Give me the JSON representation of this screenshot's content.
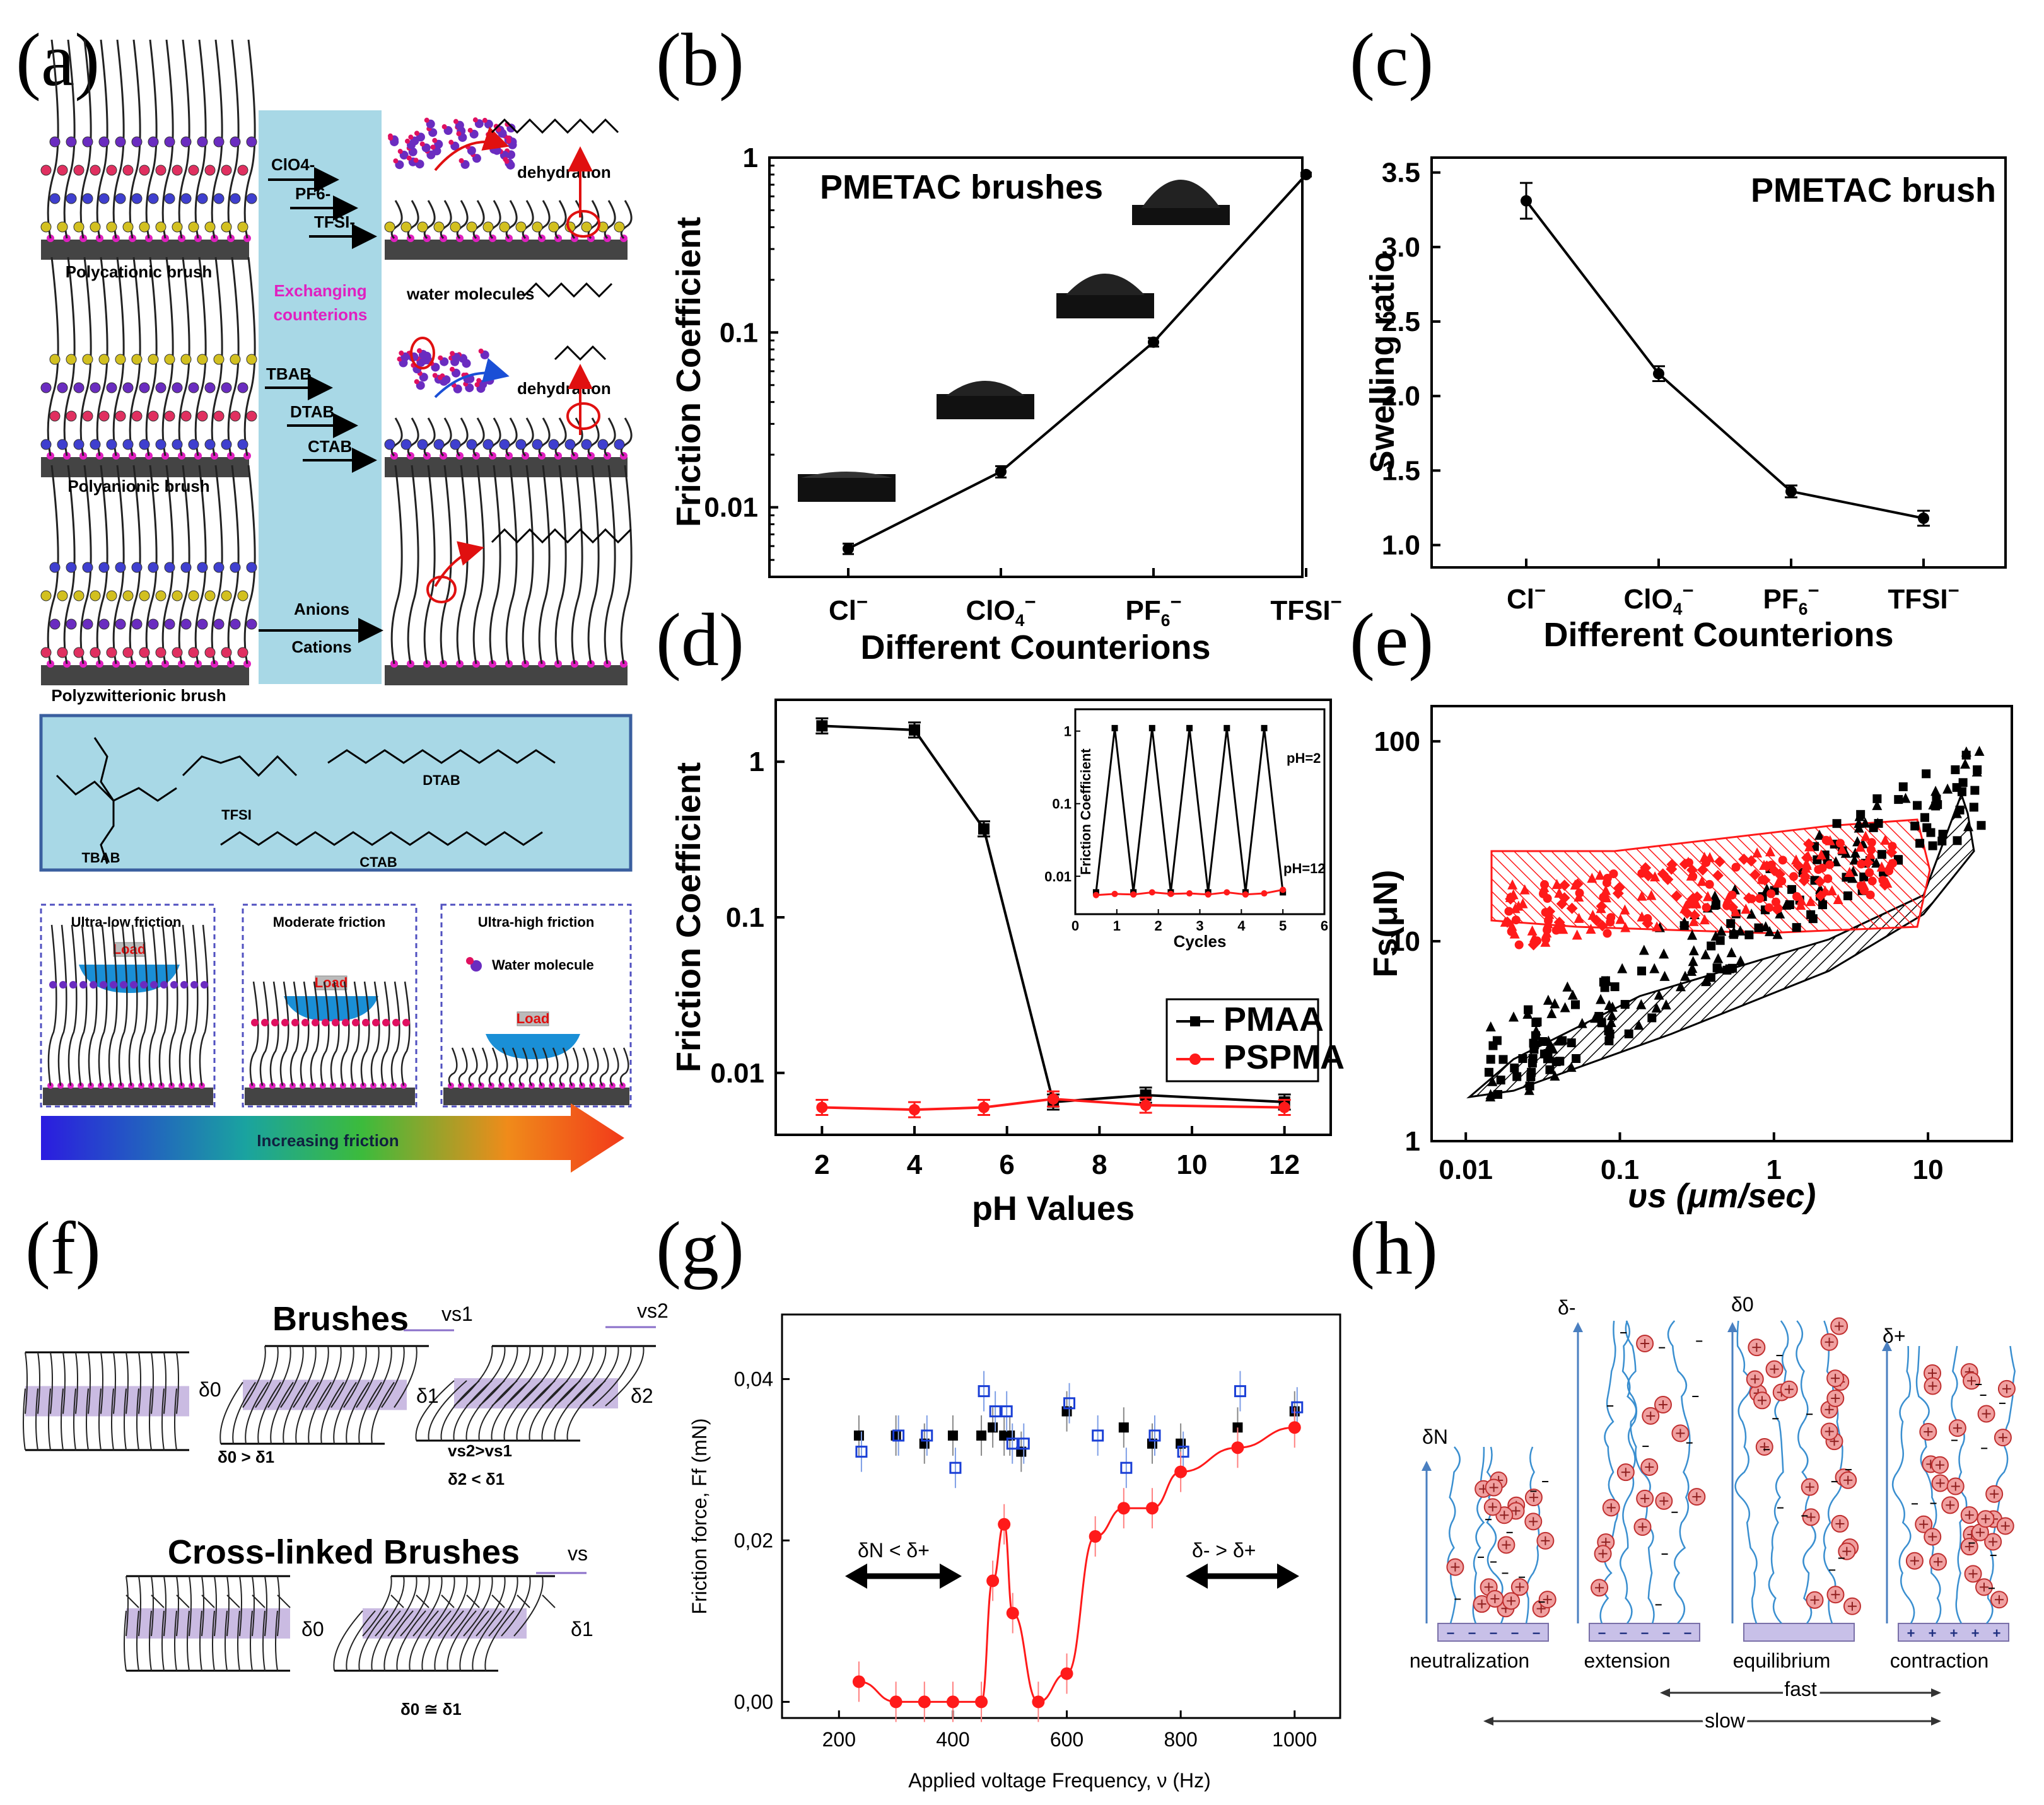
{
  "panel_labels": [
    "(a)",
    "(b)",
    "(c)",
    "(d)",
    "(e)",
    "(f)",
    "(g)",
    "(h)"
  ],
  "panel_a": {
    "brush_names": [
      "Polycationic brush",
      "Polyanionic brush",
      "Polyzwitterionic brush"
    ],
    "exchanging": [
      "Exchanging",
      "counterions"
    ],
    "counterions_top": [
      "ClO4-",
      "PF6-",
      "TFSI-"
    ],
    "counterions_mid": [
      "TBAB",
      "DTAB",
      "CTAB"
    ],
    "zwitter_arrows": [
      "Anions",
      "Cations"
    ],
    "dehydration": "dehydration",
    "water_molecules": "water molecules",
    "chem_labels": [
      "TBAB",
      "TFSI",
      "DTAB",
      "CTAB"
    ],
    "friction_boxes": [
      "Ultra-low friction",
      "Moderate friction",
      "Ultra-high friction"
    ],
    "load": "Load",
    "water_molecule": "Water molecule",
    "increasing_friction": "Increasing friction"
  },
  "panel_f": {
    "title_brushes": "Brushes",
    "title_crosslinked": "Cross-linked Brushes",
    "rel1": "δ0 > δ1",
    "rel2a": "vs2>vs1",
    "rel2b": "δ2 < δ1",
    "rel3": "δ0 ≅ δ1",
    "d0": "δ0",
    "d1": "δ1",
    "d2": "δ2",
    "vs1": "vs1",
    "vs2": "vs2",
    "vs": "vs"
  },
  "panel_h": {
    "states": [
      "neutralization",
      "extension",
      "equilibrium",
      "contraction"
    ],
    "fast": "fast",
    "slow": "slow",
    "deltas": [
      "δN",
      "δ-",
      "δ0",
      "δ+"
    ]
  },
  "chart_data": [
    {
      "id": "b",
      "type": "line",
      "title": "PMETAC brushes",
      "xlabel": "Different Counterions",
      "ylabel": "Friction Coefficient",
      "categories": [
        "Cl-",
        "ClO4-",
        "PF6-",
        "TFSI-"
      ],
      "yscale": "log",
      "ylim": [
        0.004,
        1
      ],
      "yticks": [
        "0.01",
        "0.1",
        "1"
      ],
      "series": [
        {
          "name": "PMETAC",
          "values": [
            0.0058,
            0.016,
            0.088,
            0.8
          ],
          "errors": [
            0.0004,
            0.0012,
            0.005,
            0.02
          ]
        }
      ]
    },
    {
      "id": "c",
      "type": "line",
      "title": "PMETAC brush",
      "xlabel": "Different Counterions",
      "ylabel": "Swelling ratio",
      "categories": [
        "Cl-",
        "ClO4-",
        "PF6-",
        "TFSI-"
      ],
      "ylim": [
        0.85,
        3.6
      ],
      "yticks": [
        "1.0",
        "1.5",
        "2.0",
        "2.5",
        "3.0",
        "3.5"
      ],
      "series": [
        {
          "name": "PMETAC",
          "values": [
            3.31,
            2.15,
            1.36,
            1.18
          ],
          "errors": [
            0.12,
            0.05,
            0.04,
            0.05
          ]
        }
      ]
    },
    {
      "id": "d",
      "type": "line",
      "xlabel": "pH Values",
      "ylabel": "Friction Coefficient",
      "yscale": "log",
      "xlim": [
        1,
        13
      ],
      "ylim": [
        0.004,
        2.5
      ],
      "xticks": [
        "2",
        "4",
        "6",
        "8",
        "10",
        "12"
      ],
      "yticks": [
        "0.01",
        "0.1",
        "1"
      ],
      "series": [
        {
          "name": "PMAA",
          "color": "#000000",
          "x": [
            2,
            4,
            5.5,
            7,
            9,
            12
          ],
          "values": [
            1.7,
            1.6,
            0.37,
            0.0065,
            0.0072,
            0.0065
          ]
        },
        {
          "name": "PSPMA",
          "color": "#ff1a1a",
          "x": [
            2,
            4,
            5.5,
            7,
            9,
            12
          ],
          "values": [
            0.006,
            0.0058,
            0.006,
            0.0068,
            0.0062,
            0.006
          ]
        }
      ],
      "inset": {
        "xlabel": "Cycles",
        "ylabel": "Friction Coefficient",
        "xticks": [
          "0",
          "1",
          "2",
          "3",
          "4",
          "5",
          "6"
        ],
        "yticks": [
          "0.01",
          "0.1",
          "1"
        ],
        "annotations": [
          "pH=2",
          "pH=12"
        ],
        "black": [
          0.006,
          1.1,
          0.006,
          1.1,
          0.006,
          1.1,
          0.006,
          1.1,
          0.006,
          1.1,
          0.006
        ],
        "red": [
          0.0055,
          0.0057,
          0.0056,
          0.006,
          0.0057,
          0.0058,
          0.0056,
          0.006,
          0.0056,
          0.0058,
          0.0065
        ]
      }
    },
    {
      "id": "e",
      "type": "scatter",
      "xlabel": "υs (μm/sec)",
      "ylabel": "Fs(μN)",
      "xscale": "log",
      "yscale": "log",
      "xlim": [
        0.006,
        35
      ],
      "ylim": [
        1,
        150
      ],
      "xticks": [
        "0.01",
        "0.1",
        "1",
        "10"
      ],
      "yticks": [
        "1",
        "10",
        "100"
      ],
      "series": [
        {
          "name": "black",
          "color": "#000000"
        },
        {
          "name": "red",
          "color": "#ff1a1a"
        }
      ]
    },
    {
      "id": "g",
      "type": "scatter",
      "xlabel": "Applied voltage Frequency, ν (Hz)",
      "ylabel": "Friction force, Ff (mN)",
      "xlim": [
        100,
        1080
      ],
      "ylim": [
        -0.002,
        0.048
      ],
      "xticks": [
        "200",
        "400",
        "600",
        "800",
        "1000"
      ],
      "yticks": [
        "0,00",
        "0,02",
        "0,04"
      ],
      "annotations": [
        "δN < δ+",
        "δ- > δ+"
      ],
      "series": [
        {
          "name": "black squares",
          "color": "#000000",
          "x": [
            235,
            300,
            350,
            400,
            450,
            470,
            490,
            500,
            520,
            600,
            700,
            750,
            800,
            900,
            1000
          ],
          "values": [
            0.033,
            0.033,
            0.032,
            0.033,
            0.033,
            0.034,
            0.033,
            0.033,
            0.031,
            0.036,
            0.034,
            0.032,
            0.032,
            0.034,
            0.036
          ]
        },
        {
          "name": "blue open squares",
          "color": "#1a3fd6",
          "x": [
            235,
            300,
            350,
            400,
            450,
            470,
            490,
            500,
            520,
            600,
            650,
            700,
            750,
            800,
            900,
            1000
          ],
          "values": [
            0.031,
            0.033,
            0.033,
            0.029,
            0.0385,
            0.036,
            0.036,
            0.032,
            0.032,
            0.037,
            0.033,
            0.029,
            0.033,
            0.031,
            0.0385,
            0.0365
          ]
        },
        {
          "name": "red circles",
          "color": "#ff1a1a",
          "x": [
            235,
            300,
            350,
            400,
            450,
            470,
            490,
            505,
            550,
            600,
            650,
            700,
            750,
            800,
            900,
            1000
          ],
          "values": [
            0.0025,
            0,
            0,
            0,
            0,
            0.015,
            0.022,
            0.011,
            0,
            0.0035,
            0.0205,
            0.024,
            0.024,
            0.0285,
            0.0315,
            0.034
          ]
        }
      ]
    }
  ]
}
